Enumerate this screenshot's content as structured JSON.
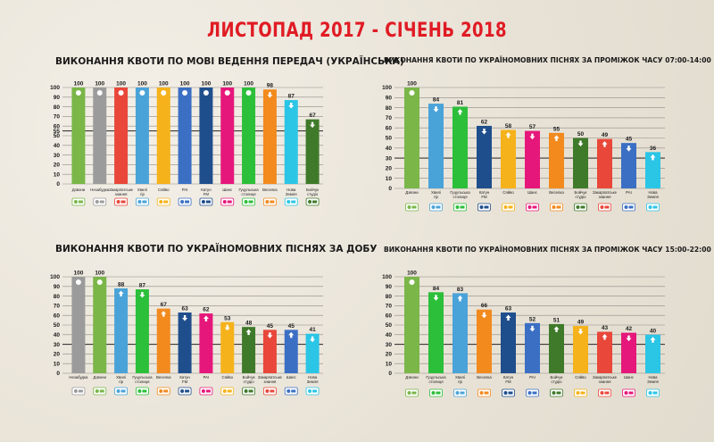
{
  "title": "ЛИСТОПАД 2017 - СІЧЕНЬ 2018",
  "colors": {
    "title": "#e01b24",
    "Дзвони": "#7ab648",
    "Незабудка": "#9b9b9b",
    "Гуцульський голос": "#e8473a",
    "Закарпаття": "#ee3f3a",
    "Хвилі гір": "#4aa3d8",
    "Сяйво": "#f5b21a",
    "РАІ": "#3a6fc4",
    "Катун FM": "#1f4e8c",
    "Шанс": "#e6177a",
    "Гуцульське столиці": "#2cbf3a",
    "Веселі": "#f28a1e",
    "Нова Земля": "#2bc5e6",
    "Бойчук студіо": "#3f7a2a",
    "Березні": "#e01b24",
    "Закарпатські знаки": "#d43a2f",
    "Веселка": "#f28a1e"
  },
  "chart_data": [
    {
      "type": "bar",
      "title": "ВИКОНАННЯ КВОТИ ПО МОВІ ВЕДЕННЯ ПЕРЕДАЧ (УКРАЇНСЬКА)",
      "categories": [
        "Дзвони",
        "Незабудка",
        "Закарпатське знання",
        "Хвилі гір",
        "Сяйво",
        "РАІ",
        "Катун FM",
        "Шанс",
        "Гуцульська столиця",
        "Веселка",
        "Нова Земля",
        "Бойчук студіо"
      ],
      "values": [
        100,
        100,
        100,
        100,
        100,
        100,
        100,
        100,
        100,
        98,
        87,
        67
      ],
      "colors": [
        "#7ab648",
        "#9b9b9b",
        "#e8473a",
        "#4aa3d8",
        "#f5b21a",
        "#3a6fc4",
        "#1f4e8c",
        "#e6177a",
        "#2cbf3a",
        "#f28a1e",
        "#2bc5e6",
        "#3f7a2a"
      ],
      "ylim": [
        0,
        100
      ],
      "yticks": [
        0,
        10,
        20,
        30,
        40,
        50,
        55,
        60,
        70,
        80,
        90,
        100
      ],
      "reference_line": 55,
      "grid": true
    },
    {
      "type": "bar",
      "title": "ВИКОНАННЯ КВОТИ ПО УКРАЇНОМОВНИХ ПІСНЯХ ЗА ПРОМІЖОК ЧАСУ 07:00-14:00",
      "categories": [
        "Дзвони",
        "Хвилі гір",
        "Гуцульська столиця",
        "Катун FM",
        "Сяйво",
        "Шанс",
        "Веселка",
        "Бойчук студіо",
        "Закарпатське знання",
        "РАІ",
        "Нова Земля"
      ],
      "values": [
        100,
        84,
        81,
        62,
        58,
        57,
        55,
        50,
        49,
        45,
        36
      ],
      "colors": [
        "#7ab648",
        "#4aa3d8",
        "#2cbf3a",
        "#1f4e8c",
        "#f5b21a",
        "#e6177a",
        "#f28a1e",
        "#3f7a2a",
        "#e8473a",
        "#3a6fc4",
        "#2bc5e6"
      ],
      "ylim": [
        0,
        100
      ],
      "yticks": [
        0,
        10,
        20,
        30,
        40,
        50,
        60,
        70,
        80,
        90,
        100
      ],
      "reference_line": 30,
      "grid": true
    },
    {
      "type": "bar",
      "title": "ВИКОНАННЯ КВОТИ ПО УКРАЇНОМОВНИХ ПІСНЯХ ЗА ДОБУ",
      "categories": [
        "Незабудка",
        "Дзвони",
        "Хвилі гір",
        "Гуцульська столиця",
        "Веселка",
        "Катун FM",
        "РАІ",
        "Сяйво",
        "Бойчук студіо",
        "Закарпатське знання",
        "Шанс",
        "Нова Земля"
      ],
      "values": [
        100,
        100,
        88,
        87,
        67,
        63,
        62,
        53,
        48,
        45,
        45,
        41
      ],
      "colors": [
        "#9b9b9b",
        "#7ab648",
        "#4aa3d8",
        "#2cbf3a",
        "#f28a1e",
        "#1f4e8c",
        "#e6177a",
        "#f5b21a",
        "#3f7a2a",
        "#e8473a",
        "#3a6fc4",
        "#2bc5e6"
      ],
      "ylim": [
        0,
        100
      ],
      "yticks": [
        0,
        10,
        20,
        30,
        40,
        50,
        60,
        70,
        80,
        90,
        100
      ],
      "reference_line": 30,
      "grid": true
    },
    {
      "type": "bar",
      "title": "ВИКОНАННЯ КВОТИ ПО УКРАЇНОМОВНИХ ПІСНЯХ ЗА ПРОМІЖОК ЧАСУ 15:00-22:00",
      "categories": [
        "Дзвони",
        "Гуцульська столиця",
        "Хвилі гір",
        "Веселка",
        "Катун FM",
        "РАІ",
        "Бойчук студіо",
        "Сяйво",
        "Закарпатське знання",
        "Шанс",
        "Нова Земля"
      ],
      "values": [
        100,
        84,
        83,
        66,
        63,
        52,
        51,
        49,
        43,
        42,
        40
      ],
      "colors": [
        "#7ab648",
        "#2cbf3a",
        "#4aa3d8",
        "#f28a1e",
        "#1f4e8c",
        "#3a6fc4",
        "#3f7a2a",
        "#f5b21a",
        "#e8473a",
        "#e6177a",
        "#2bc5e6"
      ],
      "ylim": [
        0,
        100
      ],
      "yticks": [
        0,
        10,
        20,
        30,
        40,
        50,
        60,
        70,
        80,
        90,
        100
      ],
      "reference_line": 30,
      "grid": true
    }
  ]
}
